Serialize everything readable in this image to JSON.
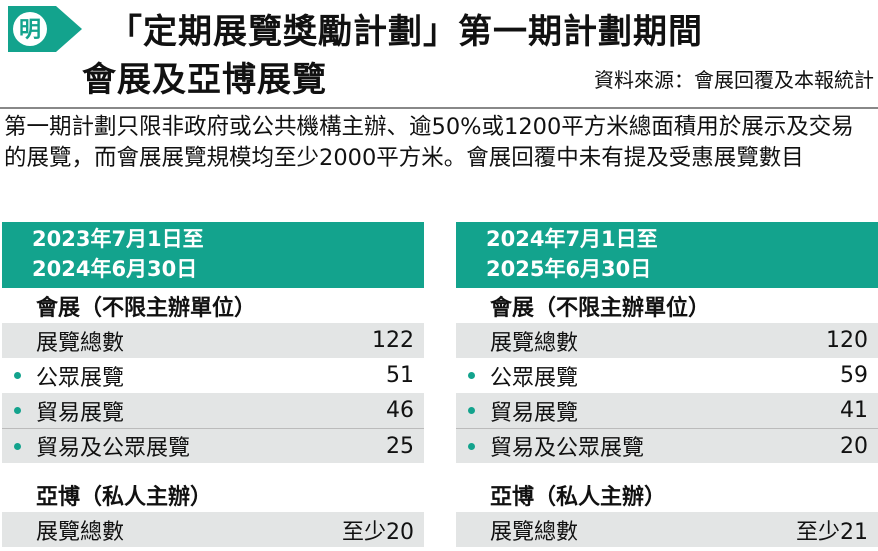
{
  "header": {
    "logo_char": "明",
    "title_line1": "「定期展覽獎勵計劃」第一期計劃期間",
    "title_line2": "會展及亞博展覽",
    "source": "資料來源：會展回覆及本報統計"
  },
  "note": "第一期計劃只限非政府或公共機構主辦、逾50%或1200平方米總面積用於展示及交易的展覽，而會展展覽規模均至少2000平方米。會展回覆中未有提及受惠展覽數目",
  "colors": {
    "accent": "#13a38d",
    "row_shade": "#e3e5e5",
    "text": "#111111"
  },
  "panels": [
    {
      "period_line1": "2023年7月1日至",
      "period_line2": "2024年6月30日",
      "hkcec": {
        "heading": "會展（不限主辦單位）",
        "total_label": "展覽總數",
        "total_value": "122",
        "items": [
          {
            "label": "公眾展覽",
            "value": "51"
          },
          {
            "label": "貿易展覽",
            "value": "46"
          },
          {
            "label": "貿易及公眾展覽",
            "value": "25"
          }
        ]
      },
      "asiaworld": {
        "heading": "亞博（私人主辦）",
        "total_label": "展覽總數",
        "total_value": "至少20"
      }
    },
    {
      "period_line1": "2024年7月1日至",
      "period_line2": "2025年6月30日",
      "hkcec": {
        "heading": "會展（不限主辦單位）",
        "total_label": "展覽總數",
        "total_value": "120",
        "items": [
          {
            "label": "公眾展覽",
            "value": "59"
          },
          {
            "label": "貿易展覽",
            "value": "41"
          },
          {
            "label": "貿易及公眾展覽",
            "value": "20"
          }
        ]
      },
      "asiaworld": {
        "heading": "亞博（私人主辦）",
        "total_label": "展覽總數",
        "total_value": "至少21"
      }
    }
  ]
}
